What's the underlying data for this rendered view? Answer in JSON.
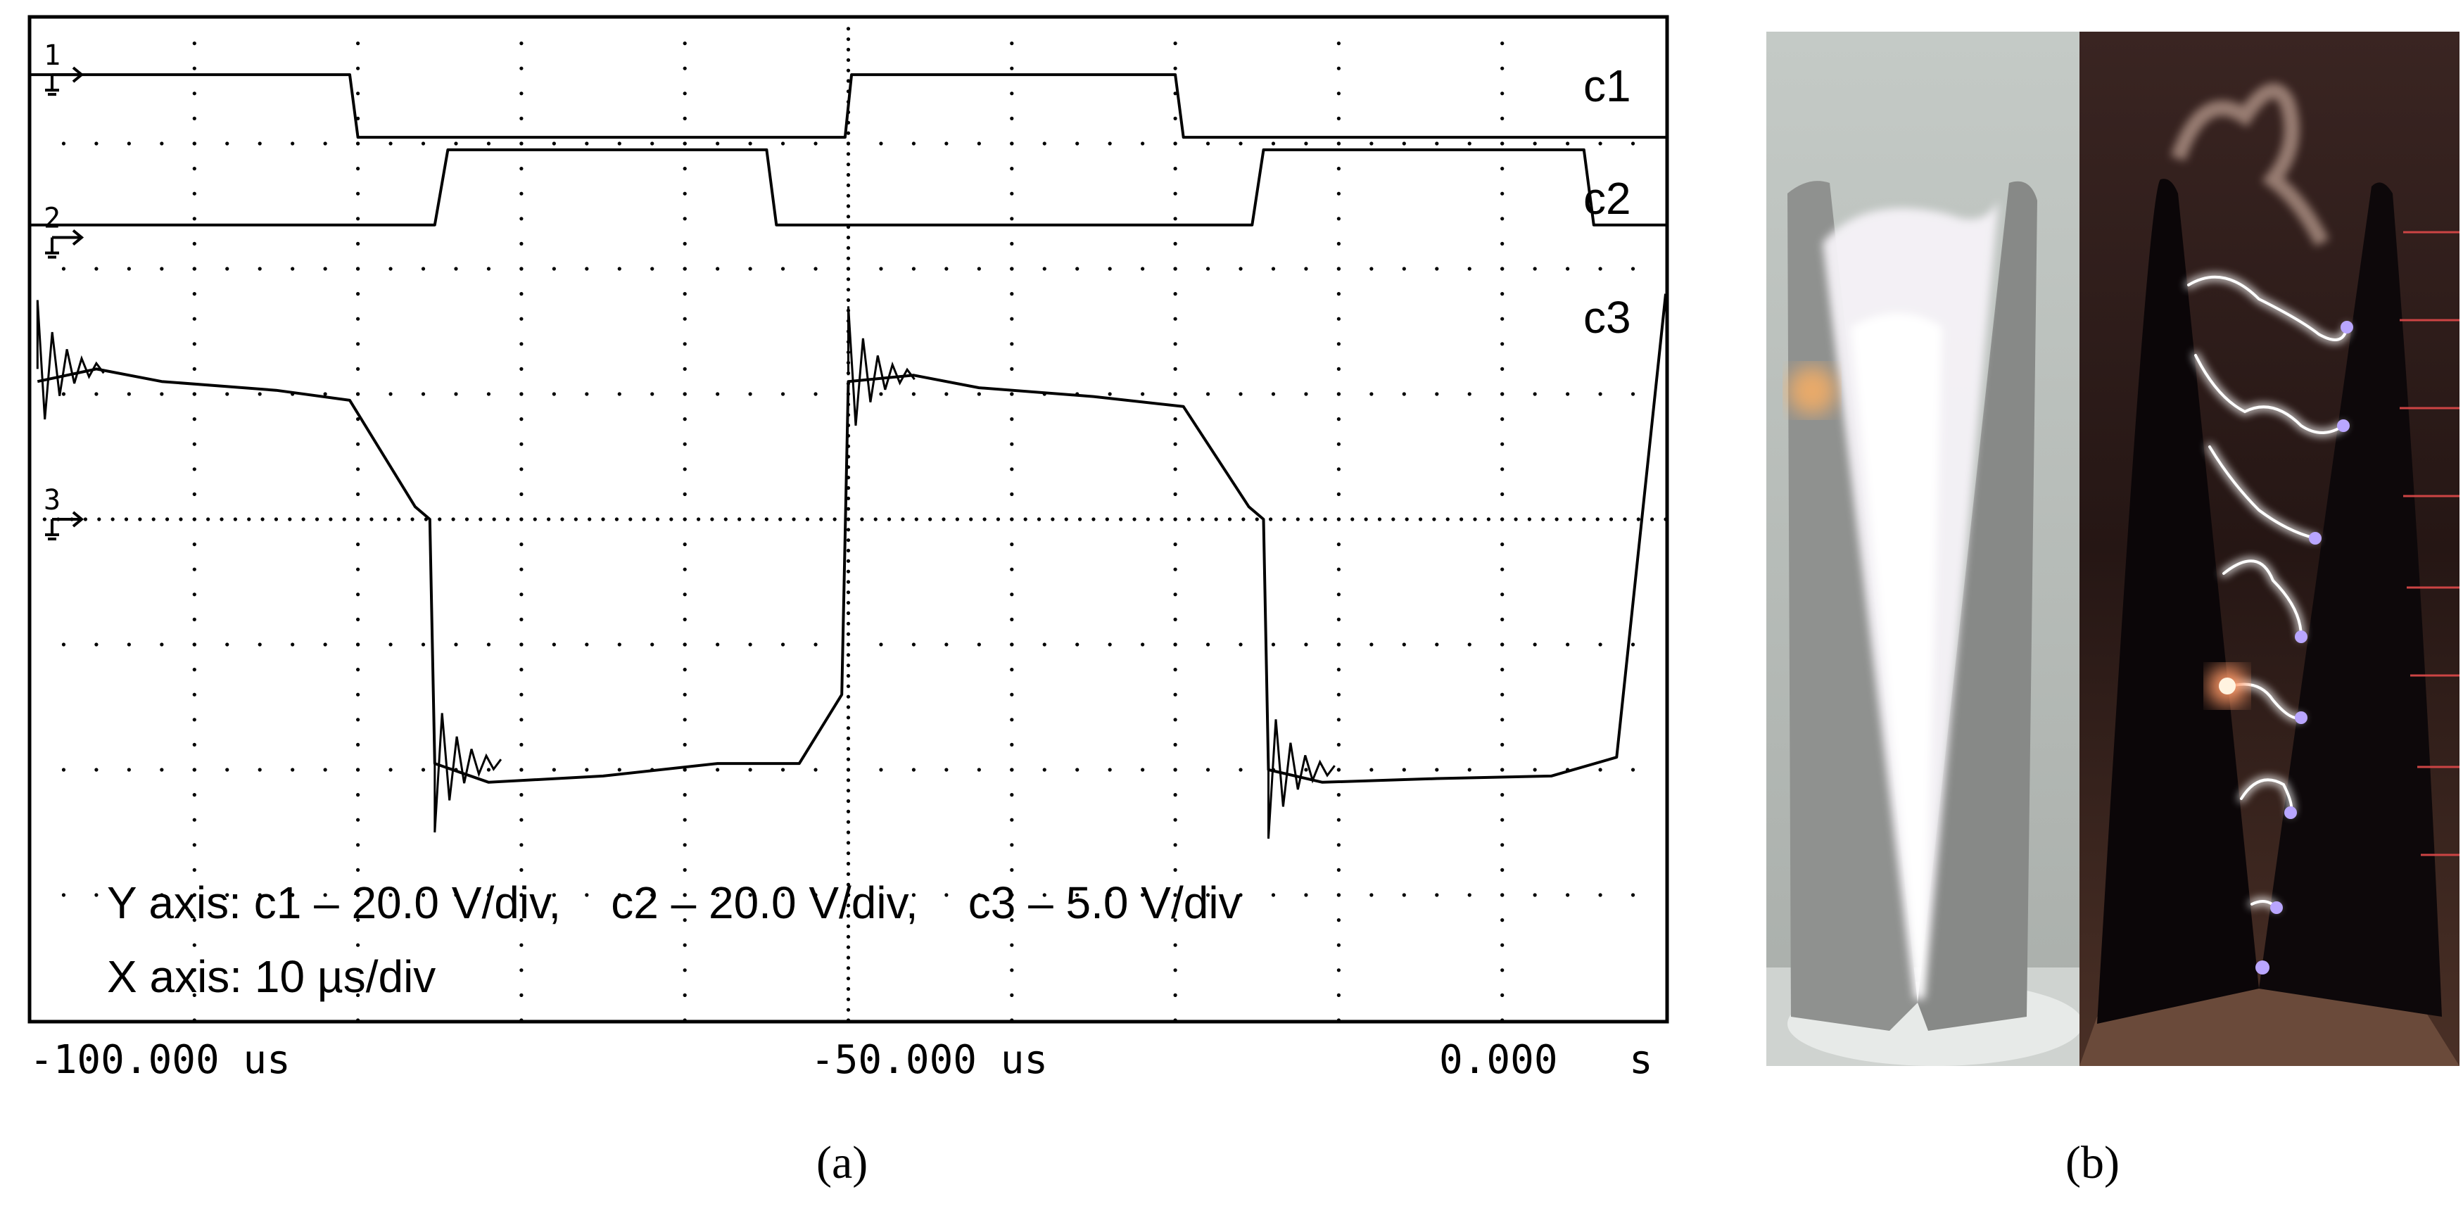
{
  "chart_data": {
    "type": "line",
    "title": "",
    "x_ticks": [
      "-100.000 us",
      "-50.000 us",
      "0.000",
      "s"
    ],
    "x_unit_note": "X axis: 10 µs/div",
    "y_unit_note": "Y axis: c1 – 20.0 V/div,    c2 – 20.0 V/div,    c3 – 5.0 V/div",
    "grid": true,
    "divisions": {
      "x": 10,
      "y": 8
    },
    "x_range_us": [
      -100,
      0
    ],
    "channel_markers": [
      "1",
      "2",
      "3"
    ],
    "series": [
      {
        "name": "c1",
        "x_us": [
          -100,
          -80.5,
          -80.0,
          -50.2,
          -49.8,
          -30.0,
          -29.5,
          0
        ],
        "y_div": [
          7.55,
          7.55,
          7.05,
          7.05,
          7.55,
          7.55,
          7.05,
          7.05
        ]
      },
      {
        "name": "c2",
        "x_us": [
          -100,
          -75.3,
          -74.5,
          -55.0,
          -54.4,
          -25.3,
          -24.6,
          -5.0,
          -4.4,
          0
        ],
        "y_div": [
          6.35,
          6.35,
          6.95,
          6.95,
          6.35,
          6.35,
          6.95,
          6.95,
          6.35,
          6.35
        ],
        "y_div_rendered_base": 6.25
      },
      {
        "name": "c3",
        "x_us": [
          -99.6,
          -96,
          -92,
          -85,
          -80.5,
          -76.5,
          -75.6,
          -75.3,
          -72,
          -65,
          -58,
          -53,
          -50.4,
          -50.0,
          -46,
          -42,
          -35,
          -29.5,
          -25.5,
          -24.6,
          -24.3,
          -21,
          -14,
          -7,
          -3,
          0
        ],
        "y_div": [
          5.1,
          5.2,
          5.1,
          5.03,
          4.95,
          4.1,
          4.0,
          2.05,
          1.9,
          1.95,
          2.05,
          2.05,
          2.6,
          5.1,
          5.15,
          5.05,
          4.98,
          4.9,
          4.1,
          4.0,
          2.0,
          1.9,
          1.93,
          1.95,
          2.1,
          5.8
        ]
      }
    ],
    "annotations": [
      "c1",
      "c2",
      "c3"
    ]
  },
  "panel_labels": {
    "a": "(a)",
    "b": "(b)"
  },
  "photo": {
    "left_bg": "#b9bfbb",
    "right_bg": "#2a1a18",
    "electrode_left": "#8e8f8e",
    "electrode_dark": "#0c0709",
    "arc_white": "#ffffff",
    "arc_glow": "#d9b8e8",
    "red_mark": "#d84a4a"
  }
}
